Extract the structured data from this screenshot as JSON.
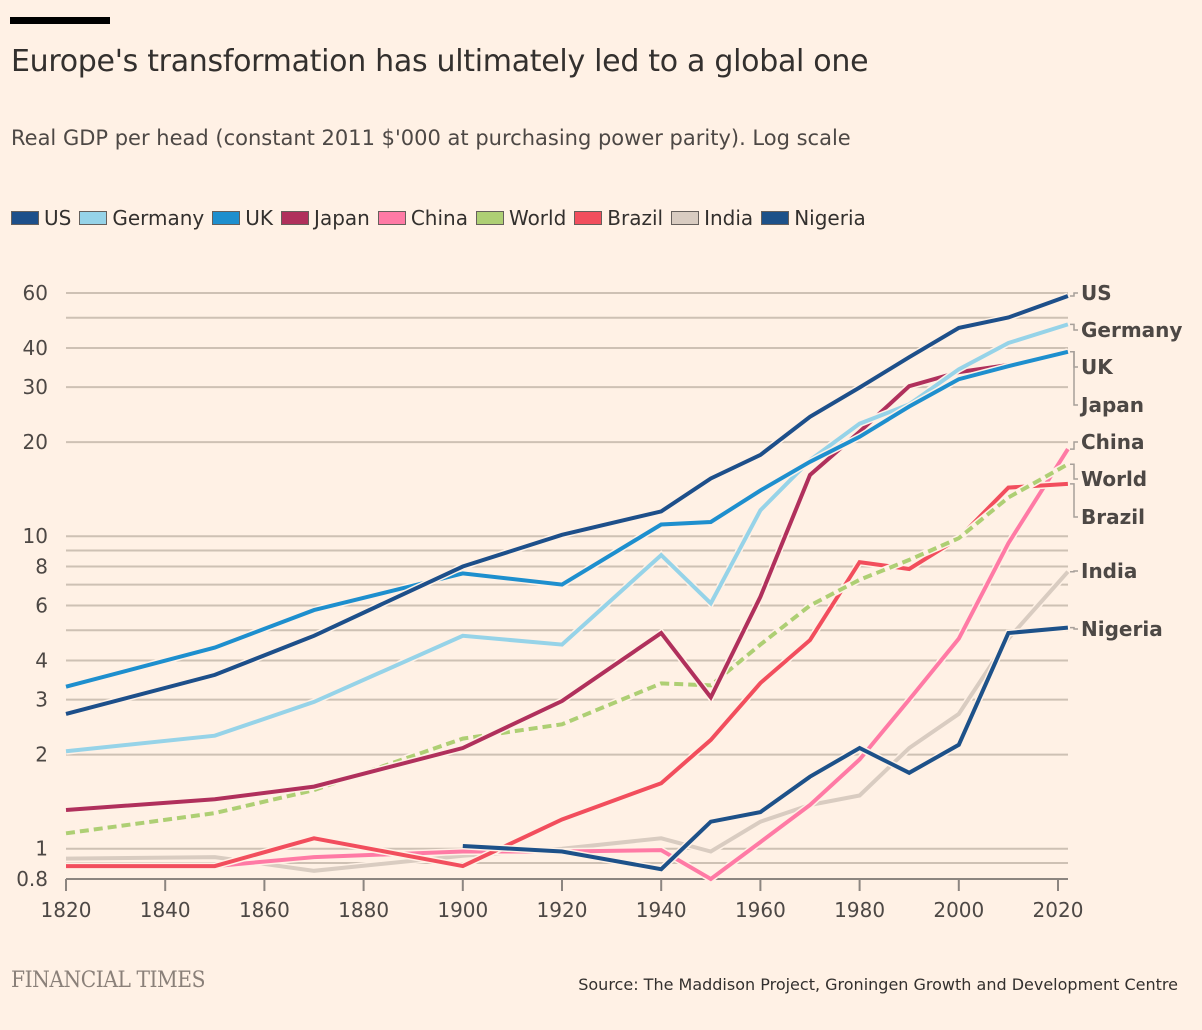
{
  "header": {
    "title": "Europe's transformation has ultimately led to a global one",
    "subtitle": "Real GDP per head (constant 2011 $'000 at purchasing power parity). Log scale"
  },
  "footer": {
    "brand": "FINANCIAL TIMES",
    "source": "Source: The Maddison Project, Groningen Growth and Development Centre"
  },
  "chart_data": {
    "type": "line",
    "title": "Europe's transformation has ultimately led to a global one",
    "subtitle": "Real GDP per head (constant 2011 $'000 at purchasing power parity). Log scale",
    "xlabel": "",
    "ylabel": "",
    "yscale": "log",
    "ylim": [
      0.8,
      60
    ],
    "xlim": [
      1820,
      2022
    ],
    "grid": true,
    "legend_position": "top",
    "x_ticks": [
      1820,
      1840,
      1860,
      1880,
      1900,
      1920,
      1940,
      1960,
      1980,
      2000,
      2020
    ],
    "x_tick_labels": [
      "1820",
      "1840",
      "1860",
      "1880",
      "1900",
      "1920",
      "1940",
      "1960",
      "1980",
      "2000",
      "2020"
    ],
    "y_ticks": [
      0.8,
      1,
      2,
      3,
      4,
      6,
      8,
      10,
      20,
      30,
      40,
      60
    ],
    "y_tick_labels": [
      "0.8",
      "1",
      "2",
      "3",
      "4",
      "6",
      "8",
      "10",
      "20",
      "30",
      "40",
      "60"
    ],
    "y_gridlines": [
      0.9,
      1,
      2,
      3,
      4,
      5,
      6,
      7,
      8,
      9,
      10,
      20,
      30,
      40,
      50,
      60
    ],
    "x": [
      1820,
      1850,
      1870,
      1900,
      1920,
      1940,
      1950,
      1960,
      1970,
      1980,
      1990,
      2000,
      2010,
      2022
    ],
    "series": [
      {
        "name": "US",
        "color": "#1d4f8a",
        "dashed": false,
        "values": [
          2.7,
          3.6,
          4.8,
          8.0,
          10.1,
          12.0,
          15.3,
          18.2,
          24.1,
          29.9,
          37.4,
          46.4,
          50.1,
          58.7
        ]
      },
      {
        "name": "Germany",
        "color": "#96d3e8",
        "dashed": false,
        "values": [
          2.05,
          2.3,
          2.95,
          4.8,
          4.5,
          8.7,
          6.1,
          12.1,
          17.5,
          22.9,
          26.4,
          34.2,
          41.5,
          47.6
        ]
      },
      {
        "name": "UK",
        "color": "#1e8fce",
        "dashed": false,
        "values": [
          3.3,
          4.4,
          5.8,
          7.6,
          7.0,
          10.9,
          11.1,
          14.0,
          17.3,
          20.8,
          26.0,
          31.8,
          35.0,
          38.9
        ]
      },
      {
        "name": "Japan",
        "color": "#b0305c",
        "dashed": false,
        "values": [
          1.33,
          1.44,
          1.58,
          2.1,
          2.97,
          4.9,
          3.05,
          6.4,
          15.7,
          21.6,
          30.2,
          33.5,
          35.3,
          38.9
        ]
      },
      {
        "name": "China",
        "color": "#ff7aa5",
        "dashed": false,
        "values": [
          0.88,
          0.88,
          0.94,
          0.98,
          0.98,
          0.99,
          0.8,
          1.05,
          1.38,
          1.93,
          3.0,
          4.7,
          9.5,
          19.0
        ]
      },
      {
        "name": "World",
        "color": "#aecf74",
        "dashed": true,
        "values": [
          1.12,
          1.3,
          1.54,
          2.25,
          2.5,
          3.38,
          3.33,
          4.5,
          6.0,
          7.25,
          8.4,
          9.85,
          13.3,
          17.0
        ]
      },
      {
        "name": "Brazil",
        "color": "#f24e5d",
        "dashed": false,
        "values": [
          0.88,
          0.88,
          1.08,
          0.88,
          1.24,
          1.62,
          2.23,
          3.39,
          4.65,
          8.26,
          7.85,
          9.86,
          14.3,
          14.7
        ]
      },
      {
        "name": "India",
        "color": "#d9ccc1",
        "dashed": false,
        "values": [
          0.93,
          0.94,
          0.85,
          0.95,
          1.0,
          1.08,
          0.98,
          1.22,
          1.38,
          1.48,
          2.1,
          2.7,
          4.7,
          7.7
        ]
      },
      {
        "name": "Nigeria",
        "color": "#1d5189",
        "dashed": false,
        "values": [
          null,
          null,
          null,
          1.02,
          0.98,
          0.86,
          1.22,
          1.31,
          1.7,
          2.1,
          1.75,
          2.15,
          4.9,
          5.1
        ]
      }
    ],
    "end_labels": [
      "US",
      "Germany",
      "UK",
      "Japan",
      "China",
      "World",
      "Brazil",
      "India",
      "Nigeria"
    ]
  }
}
